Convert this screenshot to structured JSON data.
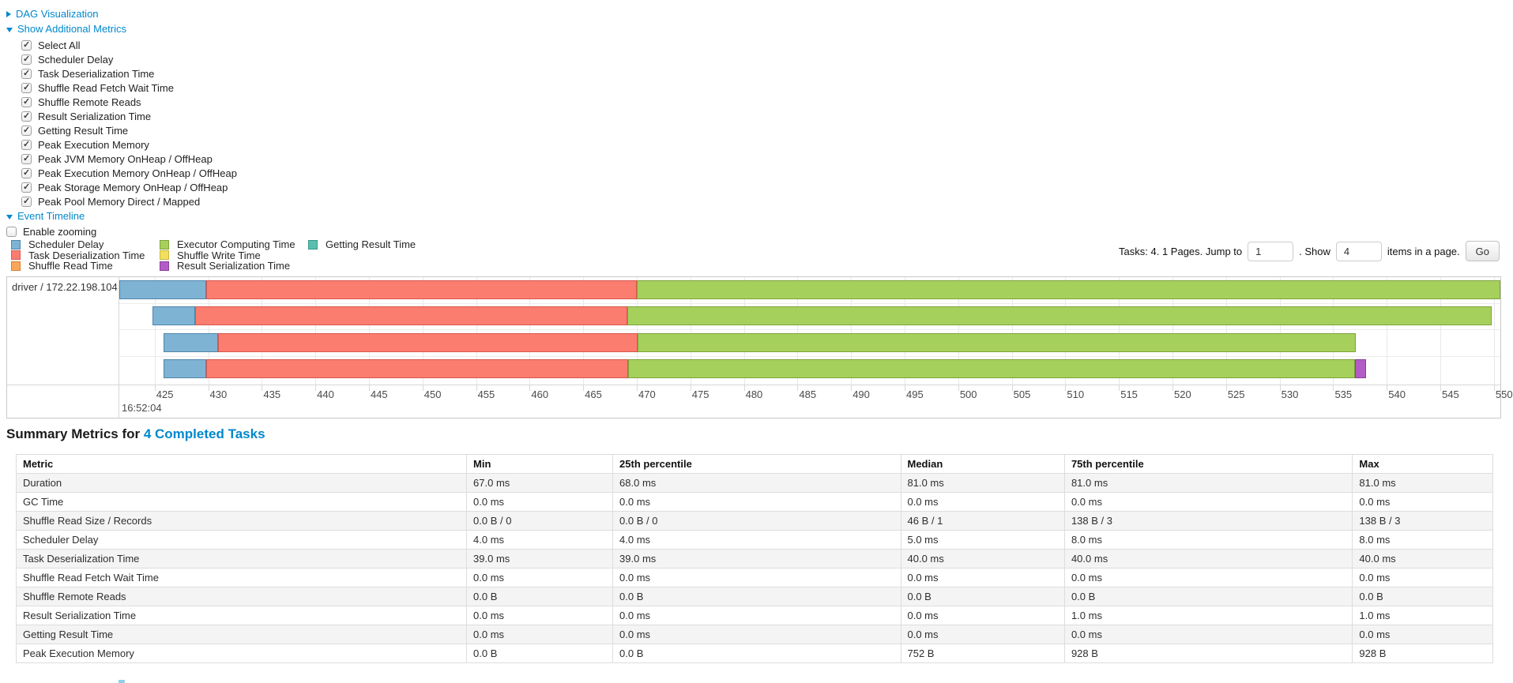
{
  "toggles": {
    "dag_label": "DAG Visualization",
    "metrics_label": "Show Additional Metrics",
    "timeline_label": "Event Timeline",
    "enable_zooming_label": "Enable zooming",
    "link_color": "#0088cc"
  },
  "additional_metrics": {
    "items": [
      "Select All",
      "Scheduler Delay",
      "Task Deserialization Time",
      "Shuffle Read Fetch Wait Time",
      "Shuffle Remote Reads",
      "Result Serialization Time",
      "Getting Result Time",
      "Peak Execution Memory",
      "Peak JVM Memory OnHeap / OffHeap",
      "Peak Execution Memory OnHeap / OffHeap",
      "Peak Storage Memory OnHeap / OffHeap",
      "Peak Pool Memory Direct / Mapped"
    ],
    "all_checked": true
  },
  "pagination": {
    "prefix": "Tasks: 4. 1 Pages. Jump to",
    "jump_value": "1",
    "mid": ". Show",
    "show_value": "4",
    "suffix": "items in a page.",
    "go_label": "Go"
  },
  "legend_columns": [
    [
      "scheduler_delay",
      "task_deserialization",
      "shuffle_read"
    ],
    [
      "executor_computing",
      "shuffle_write",
      "result_serialization"
    ],
    [
      "getting_result"
    ]
  ],
  "chart_data": {
    "type": "timeline",
    "group_label": "driver / 172.22.198.104",
    "x_axis": {
      "min": 421.7,
      "max": 550.6,
      "tick_start": 425,
      "tick_end": 550,
      "tick_step": 5,
      "major_label": "16:52:04"
    },
    "series": [
      {
        "id": "scheduler_delay",
        "label": "Scheduler Delay",
        "color": "#7EB3D4",
        "border": "#4F86AB"
      },
      {
        "id": "task_deserialization",
        "label": "Task Deserialization Time",
        "color": "#FB7D70",
        "border": "#D9574D"
      },
      {
        "id": "shuffle_read",
        "label": "Shuffle Read Time",
        "color": "#FAA65A",
        "border": "#D97F2E"
      },
      {
        "id": "executor_computing",
        "label": "Executor Computing Time",
        "color": "#A6D05C",
        "border": "#7EA23A"
      },
      {
        "id": "shuffle_write",
        "label": "Shuffle Write Time",
        "color": "#F3DF5F",
        "border": "#CBB73A"
      },
      {
        "id": "result_serialization",
        "label": "Result Serialization Time",
        "color": "#B45CC6",
        "border": "#8A3D9C"
      },
      {
        "id": "getting_result",
        "label": "Getting Result Time",
        "color": "#58BFAE",
        "border": "#389A8A"
      }
    ],
    "tasks": [
      {
        "segments": [
          [
            "scheduler_delay",
            421.7,
            429.8
          ],
          [
            "task_deserialization",
            429.8,
            470.0
          ],
          [
            "executor_computing",
            470.0,
            550.6
          ]
        ]
      },
      {
        "segments": [
          [
            "scheduler_delay",
            424.8,
            428.8
          ],
          [
            "task_deserialization",
            428.8,
            469.1
          ],
          [
            "executor_computing",
            469.1,
            549.8
          ]
        ]
      },
      {
        "segments": [
          [
            "scheduler_delay",
            425.8,
            430.9
          ],
          [
            "task_deserialization",
            430.9,
            470.1
          ],
          [
            "executor_computing",
            470.1,
            537.1
          ]
        ]
      },
      {
        "segments": [
          [
            "scheduler_delay",
            425.8,
            429.8
          ],
          [
            "task_deserialization",
            429.8,
            469.2
          ],
          [
            "executor_computing",
            469.2,
            537.0
          ],
          [
            "result_serialization",
            537.0,
            538.1
          ]
        ]
      }
    ]
  },
  "summary_table": {
    "heading_prefix": "Summary Metrics for ",
    "heading_link": "4 Completed Tasks",
    "columns": [
      "Metric",
      "Min",
      "25th percentile",
      "Median",
      "75th percentile",
      "Max"
    ],
    "rows": [
      [
        "Duration",
        "67.0 ms",
        "68.0 ms",
        "81.0 ms",
        "81.0 ms",
        "81.0 ms"
      ],
      [
        "GC Time",
        "0.0 ms",
        "0.0 ms",
        "0.0 ms",
        "0.0 ms",
        "0.0 ms"
      ],
      [
        "Shuffle Read Size / Records",
        "0.0 B / 0",
        "0.0 B / 0",
        "46 B / 1",
        "138 B / 3",
        "138 B / 3"
      ],
      [
        "Scheduler Delay",
        "4.0 ms",
        "4.0 ms",
        "5.0 ms",
        "8.0 ms",
        "8.0 ms"
      ],
      [
        "Task Deserialization Time",
        "39.0 ms",
        "39.0 ms",
        "40.0 ms",
        "40.0 ms",
        "40.0 ms"
      ],
      [
        "Shuffle Read Fetch Wait Time",
        "0.0 ms",
        "0.0 ms",
        "0.0 ms",
        "0.0 ms",
        "0.0 ms"
      ],
      [
        "Shuffle Remote Reads",
        "0.0 B",
        "0.0 B",
        "0.0 B",
        "0.0 B",
        "0.0 B"
      ],
      [
        "Result Serialization Time",
        "0.0 ms",
        "0.0 ms",
        "0.0 ms",
        "1.0 ms",
        "1.0 ms"
      ],
      [
        "Getting Result Time",
        "0.0 ms",
        "0.0 ms",
        "0.0 ms",
        "0.0 ms",
        "0.0 ms"
      ],
      [
        "Peak Execution Memory",
        "0.0 B",
        "0.0 B",
        "752 B",
        "928 B",
        "928 B"
      ]
    ]
  }
}
